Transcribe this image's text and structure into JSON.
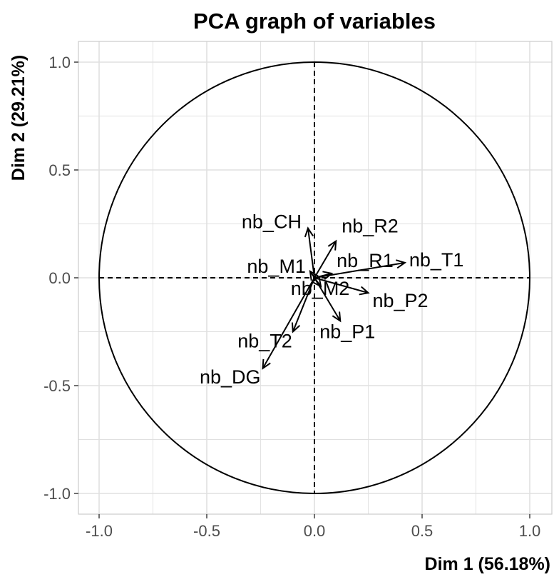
{
  "chart_data": {
    "type": "scatter",
    "title": "PCA graph of variables",
    "xlabel": "Dim 1 (56.18%)",
    "ylabel": "Dim 2 (29.21%)",
    "xlim": [
      -1.1,
      1.1
    ],
    "ylim": [
      -1.1,
      1.1
    ],
    "x_ticks": [
      -1.0,
      -0.5,
      0.0,
      0.5,
      1.0
    ],
    "y_ticks": [
      -1.0,
      -0.5,
      0.0,
      0.5,
      1.0
    ],
    "x_tick_labels": [
      "-1.0",
      "-0.5",
      "0.0",
      "0.5",
      "1.0"
    ],
    "y_tick_labels": [
      "-1.0",
      "-0.5",
      "0.0",
      "0.5",
      "1.0"
    ],
    "grid": true,
    "unit_circle": true,
    "colors": {
      "arrow": "#000000",
      "grid": "#e0e0e0",
      "panel_border": "#cccccc",
      "tick_text": "#4d4d4d"
    },
    "variables": [
      {
        "name": "nb_CH",
        "x": -0.03,
        "y": 0.23
      },
      {
        "name": "nb_R2",
        "x": 0.1,
        "y": 0.17
      },
      {
        "name": "nb_M1",
        "x": -0.02,
        "y": 0.03
      },
      {
        "name": "nb_R1",
        "x": 0.08,
        "y": 0.02
      },
      {
        "name": "nb_T1",
        "x": 0.42,
        "y": 0.07
      },
      {
        "name": "nb_M2",
        "x": 0.03,
        "y": -0.04
      },
      {
        "name": "nb_P2",
        "x": 0.25,
        "y": -0.07
      },
      {
        "name": "nb_P1",
        "x": 0.12,
        "y": -0.2
      },
      {
        "name": "nb_T2",
        "x": -0.1,
        "y": -0.25
      },
      {
        "name": "nb_DG",
        "x": -0.24,
        "y": -0.42
      }
    ]
  }
}
